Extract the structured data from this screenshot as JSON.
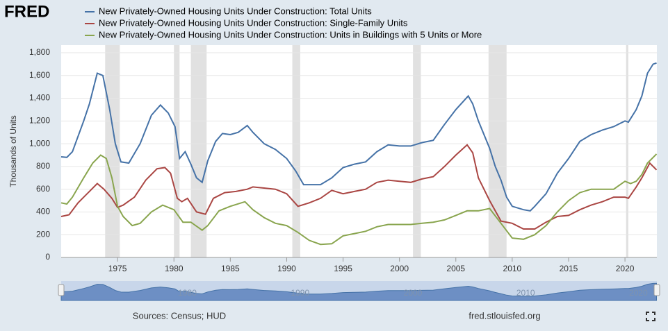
{
  "chart_data": {
    "type": "line",
    "logo": "FRED",
    "ylabel": "Thousands of Units",
    "source": "Sources: Census; HUD",
    "site": "fred.stlouisfed.org",
    "xlim": [
      1970,
      2022.83
    ],
    "xticks": [
      1975,
      1980,
      1985,
      1990,
      1995,
      2000,
      2005,
      2010,
      2015,
      2020
    ],
    "ylim": [
      0,
      1800
    ],
    "yticks": [
      0,
      200,
      400,
      600,
      800,
      {
        "value": 1000,
        "label": "1,000"
      },
      {
        "value": 1200,
        "label": "1,200"
      },
      {
        "value": 1400,
        "label": "1,400"
      },
      {
        "value": 1600,
        "label": "1,600"
      },
      {
        "value": 1800,
        "label": "1,800"
      }
    ],
    "grid": true,
    "recessions": [
      [
        1973.9,
        1975.2
      ],
      [
        1980.0,
        1980.5
      ],
      [
        1981.5,
        1982.9
      ],
      [
        1990.5,
        1991.2
      ],
      [
        2001.2,
        2001.9
      ],
      [
        2007.9,
        2009.5
      ],
      [
        2020.1,
        2020.3
      ]
    ],
    "navigator_xticks": [
      1980,
      1990,
      2000,
      2010,
      2020
    ],
    "series": [
      {
        "name": "New Privately-Owned Housing Units Under Construction: Total Units",
        "color": "#4572a7",
        "x": [
          1970,
          1970.5,
          1971,
          1972,
          1972.5,
          1973.2,
          1973.7,
          1974.3,
          1974.8,
          1975.3,
          1976,
          1977,
          1978,
          1978.8,
          1979.5,
          1980.1,
          1980.5,
          1981,
          1981.5,
          1982,
          1982.5,
          1983,
          1983.7,
          1984.3,
          1985,
          1985.7,
          1986.5,
          1987,
          1988,
          1989,
          1990,
          1990.8,
          1991.5,
          1992,
          1993,
          1994,
          1995,
          1996,
          1997,
          1998,
          1999,
          2000,
          2001,
          2002,
          2003,
          2004,
          2005,
          2006.1,
          2006.5,
          2007,
          2008,
          2008.5,
          2009,
          2009.5,
          2010,
          2011,
          2011.6,
          2012,
          2013,
          2014,
          2015,
          2016,
          2017,
          2018,
          2019,
          2020,
          2020.3,
          2021,
          2021.5,
          2022,
          2022.5,
          2022.8
        ],
        "values": [
          885,
          880,
          930,
          1200,
          1350,
          1620,
          1600,
          1300,
          1000,
          840,
          830,
          1000,
          1250,
          1340,
          1270,
          1150,
          870,
          930,
          820,
          700,
          660,
          850,
          1020,
          1090,
          1080,
          1100,
          1160,
          1100,
          1000,
          950,
          870,
          760,
          640,
          640,
          640,
          700,
          790,
          820,
          840,
          930,
          990,
          980,
          980,
          1010,
          1030,
          1170,
          1300,
          1420,
          1350,
          1200,
          960,
          800,
          680,
          530,
          450,
          420,
          410,
          450,
          560,
          740,
          870,
          1020,
          1080,
          1120,
          1150,
          1200,
          1190,
          1300,
          1420,
          1620,
          1700,
          1710
        ]
      },
      {
        "name": "New Privately-Owned Housing Units Under Construction: Single-Family Units",
        "color": "#aa4643",
        "x": [
          1970,
          1970.7,
          1971.5,
          1972.5,
          1973.2,
          1973.8,
          1974.5,
          1975,
          1975.5,
          1976.5,
          1977.5,
          1978.5,
          1979.2,
          1979.7,
          1980.3,
          1980.7,
          1981.2,
          1982,
          1982.8,
          1983.5,
          1984.5,
          1985.5,
          1986.5,
          1987,
          1988,
          1989,
          1990,
          1991,
          1992,
          1993,
          1994,
          1995,
          1996,
          1997,
          1998,
          1999,
          2000,
          2001,
          2002,
          2003,
          2004,
          2005,
          2006,
          2006.5,
          2007,
          2008,
          2009,
          2010,
          2011,
          2012,
          2013,
          2014,
          2015,
          2016,
          2017,
          2018,
          2019,
          2020,
          2020.3,
          2021,
          2021.5,
          2022.2,
          2022.8
        ],
        "values": [
          360,
          375,
          480,
          580,
          650,
          600,
          520,
          440,
          460,
          530,
          680,
          780,
          790,
          740,
          520,
          490,
          520,
          400,
          380,
          520,
          570,
          580,
          600,
          620,
          610,
          600,
          560,
          450,
          480,
          520,
          590,
          560,
          580,
          600,
          660,
          680,
          670,
          660,
          690,
          710,
          800,
          900,
          990,
          920,
          700,
          500,
          320,
          300,
          250,
          250,
          310,
          360,
          370,
          420,
          460,
          490,
          530,
          530,
          520,
          620,
          700,
          830,
          770
        ]
      },
      {
        "name": "New Privately-Owned Housing Units Under Construction: Units in Buildings with 5 Units or More",
        "color": "#89a54e",
        "x": [
          1970,
          1970.5,
          1971,
          1972,
          1972.8,
          1973.5,
          1974,
          1974.5,
          1975,
          1975.5,
          1976.3,
          1977,
          1978,
          1979,
          1980,
          1980.8,
          1981.5,
          1982.5,
          1983,
          1984,
          1985,
          1986.3,
          1987,
          1988,
          1989,
          1990,
          1991,
          1992,
          1993,
          1994,
          1995,
          1996,
          1997,
          1998,
          1999,
          2000,
          2001,
          2002,
          2003,
          2004,
          2005,
          2006,
          2007,
          2008,
          2009,
          2010,
          2011,
          2012,
          2013,
          2014,
          2015,
          2016,
          2017,
          2018,
          2019,
          2020,
          2020.5,
          2021,
          2021.5,
          2022,
          2022.8
        ],
        "values": [
          480,
          470,
          530,
          700,
          830,
          900,
          870,
          700,
          450,
          360,
          280,
          300,
          400,
          460,
          420,
          310,
          310,
          240,
          280,
          410,
          450,
          490,
          420,
          350,
          300,
          280,
          220,
          150,
          115,
          120,
          190,
          210,
          230,
          270,
          290,
          290,
          290,
          300,
          310,
          330,
          370,
          410,
          410,
          430,
          300,
          170,
          160,
          200,
          280,
          400,
          500,
          570,
          600,
          600,
          600,
          670,
          650,
          670,
          730,
          830,
          910
        ]
      }
    ]
  }
}
